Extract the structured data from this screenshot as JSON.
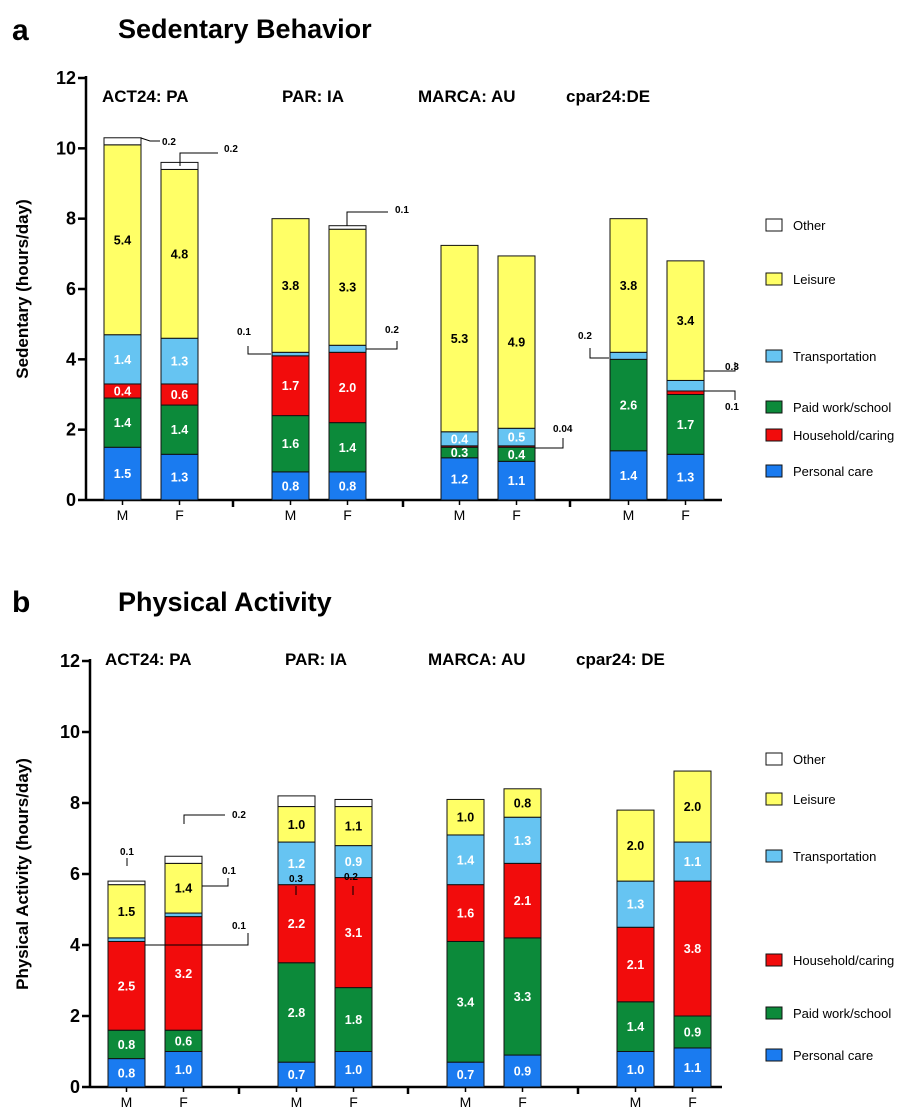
{
  "chart_data": [
    {
      "panel": "a",
      "title": "Sedentary Behavior",
      "type": "bar",
      "stacked": true,
      "ylabel": "Sedentary (hours/day)",
      "ylim": [
        0,
        12
      ],
      "yticks": [
        0,
        2,
        4,
        6,
        8,
        10,
        12
      ],
      "groups": [
        "ACT24: PA",
        "PAR: IA",
        "MARCA: AU",
        "cpar24:DE"
      ],
      "categories": [
        "M",
        "F",
        "M",
        "F",
        "M",
        "F",
        "M",
        "F"
      ],
      "stack_order": [
        "Personal care",
        "Paid work/school",
        "Household/caring",
        "Transportation",
        "Leisure",
        "Other"
      ],
      "series": [
        {
          "name": "Personal care",
          "values": [
            1.5,
            1.3,
            0.8,
            0.8,
            1.2,
            1.1,
            1.4,
            1.3
          ]
        },
        {
          "name": "Paid work/school",
          "values": [
            1.4,
            1.4,
            1.6,
            1.4,
            0.3,
            0.4,
            2.6,
            1.7
          ]
        },
        {
          "name": "Household/caring",
          "values": [
            0.4,
            0.6,
            1.7,
            2.0,
            0.04,
            0.04,
            0.0,
            0.1
          ]
        },
        {
          "name": "Transportation",
          "values": [
            1.4,
            1.3,
            0.1,
            0.2,
            0.4,
            0.5,
            0.2,
            0.3
          ]
        },
        {
          "name": "Leisure",
          "values": [
            5.4,
            4.8,
            3.8,
            3.3,
            5.3,
            4.9,
            3.8,
            3.4
          ]
        },
        {
          "name": "Other",
          "values": [
            0.2,
            0.2,
            0.0,
            0.1,
            0.0,
            0.0,
            0.0,
            0.0
          ]
        }
      ],
      "bar_labels": [
        [
          "1.5",
          "1.3",
          "0.8",
          "0.8",
          "1.2",
          "1.1",
          "1.4",
          "1.3"
        ],
        [
          "1.4",
          "1.4",
          "1.6",
          "1.4",
          "0.3",
          "0.4",
          "2.6",
          "1.7"
        ],
        [
          "0.4",
          "0.6",
          "1.7",
          "2.0",
          "",
          "",
          "",
          ""
        ],
        [
          "1.4",
          "1.3",
          "",
          "",
          "0.4",
          "0.5",
          "",
          ""
        ],
        [
          "5.4",
          "4.8",
          "3.8",
          "3.3",
          "5.3",
          "4.9",
          "3.8",
          "3.4"
        ],
        [
          "",
          "",
          "",
          "",
          "",
          "",
          "",
          ""
        ]
      ],
      "callouts": [
        {
          "bar": 0,
          "series": "Other",
          "text": "0.2"
        },
        {
          "bar": 1,
          "series": "Other",
          "text": "0.2"
        },
        {
          "bar": 2,
          "series": "Transportation",
          "text": "0.1"
        },
        {
          "bar": 3,
          "series": "Other",
          "text": "0.1"
        },
        {
          "bar": 3,
          "series": "Transportation",
          "text": "0.2"
        },
        {
          "bar": 5,
          "series": "Household/caring",
          "text": "0.04"
        },
        {
          "bar": 6,
          "series": "Transportation",
          "text": "0.2"
        },
        {
          "bar": 7,
          "series": "Transportation",
          "text": "0.3"
        },
        {
          "bar": 7,
          "series": "Household/caring",
          "text": "0.1"
        }
      ],
      "legend": [
        "Other",
        "Leisure",
        "Transportation",
        "Paid work/school",
        "Household/caring",
        "Personal care"
      ],
      "legend_position": "right"
    },
    {
      "panel": "b",
      "title": "Physical Activity",
      "type": "bar",
      "stacked": true,
      "ylabel": "Physical Activity (hours/day)",
      "ylim": [
        0,
        12
      ],
      "yticks": [
        0,
        2,
        4,
        6,
        8,
        10,
        12
      ],
      "groups": [
        "ACT24: PA",
        "PAR: IA",
        "MARCA: AU",
        "cpar24: DE"
      ],
      "categories": [
        "M",
        "F",
        "M",
        "F",
        "M",
        "F",
        "M",
        "F"
      ],
      "stack_order": [
        "Personal care",
        "Paid work/school",
        "Household/caring",
        "Transportation",
        "Leisure",
        "Other"
      ],
      "series": [
        {
          "name": "Personal care",
          "values": [
            0.8,
            1.0,
            0.7,
            1.0,
            0.7,
            0.9,
            1.0,
            1.1
          ]
        },
        {
          "name": "Paid work/school",
          "values": [
            0.8,
            0.6,
            2.8,
            1.8,
            3.4,
            3.3,
            1.4,
            0.9
          ]
        },
        {
          "name": "Household/caring",
          "values": [
            2.5,
            3.2,
            2.2,
            3.1,
            1.6,
            2.1,
            2.1,
            3.8
          ]
        },
        {
          "name": "Transportation",
          "values": [
            0.1,
            0.1,
            1.2,
            0.9,
            1.4,
            1.3,
            1.3,
            1.1
          ]
        },
        {
          "name": "Leisure",
          "values": [
            1.5,
            1.4,
            1.0,
            1.1,
            1.0,
            0.8,
            2.0,
            2.0
          ]
        },
        {
          "name": "Other",
          "values": [
            0.1,
            0.2,
            0.3,
            0.2,
            0.0,
            0.0,
            0.0,
            0.0
          ]
        }
      ],
      "bar_labels": [
        [
          "0.8",
          "1.0",
          "0.7",
          "1.0",
          "0.7",
          "0.9",
          "1.0",
          "1.1"
        ],
        [
          "0.8",
          "0.6",
          "2.8",
          "1.8",
          "3.4",
          "3.3",
          "1.4",
          "0.9"
        ],
        [
          "2.5",
          "3.2",
          "2.2",
          "3.1",
          "1.6",
          "2.1",
          "2.1",
          "3.8"
        ],
        [
          "",
          "",
          "1.2",
          "0.9",
          "1.4",
          "1.3",
          "1.3",
          "1.1"
        ],
        [
          "1.5",
          "1.4",
          "1.0",
          "1.1",
          "1.0",
          "0.8",
          "2.0",
          "2.0"
        ],
        [
          "",
          "",
          "",
          "",
          "",
          "",
          "",
          ""
        ]
      ],
      "callouts": [
        {
          "bar": 0,
          "series": "Other",
          "text": "0.1"
        },
        {
          "bar": 1,
          "series": "Other",
          "text": "0.2"
        },
        {
          "bar": 1,
          "series": "Transportation",
          "text": "0.1"
        },
        {
          "bar": 0,
          "series": "Transportation",
          "text": "0.1"
        },
        {
          "bar": 2,
          "series": "Other",
          "text": "0.3"
        },
        {
          "bar": 3,
          "series": "Other",
          "text": "0.2"
        }
      ],
      "legend": [
        "Other",
        "Leisure",
        "Transportation",
        "Household/caring",
        "Paid work/school",
        "Personal care"
      ],
      "legend_position": "right"
    }
  ],
  "colors": {
    "Personal care": "#1a7bf0",
    "Paid work/school": "#0c8a3a",
    "Household/caring": "#f20c0c",
    "Transportation": "#66c4f2",
    "Leisure": "#ffff66",
    "Other": "#ffffff"
  },
  "label_colors": {
    "Personal care": "#ffffff",
    "Paid work/school": "#ffffff",
    "Household/caring": "#ffffff",
    "Transportation": "#ffffff",
    "Leisure": "#000000",
    "Other": "#000000"
  }
}
